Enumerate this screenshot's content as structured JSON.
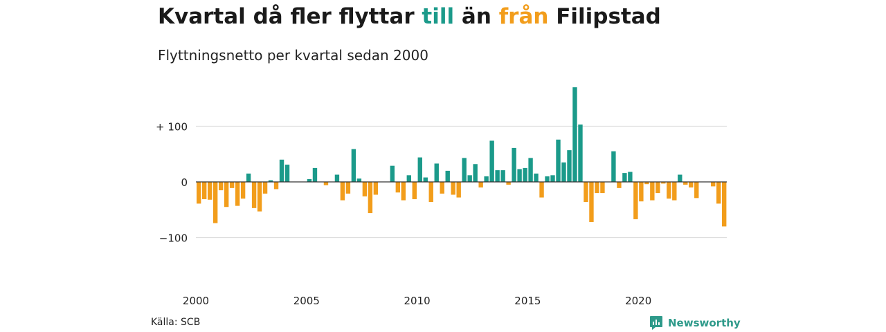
{
  "title": {
    "part1": "Kvartal då fler flyttar ",
    "till": "till",
    "part2": " än ",
    "fran": "från",
    "part3": " Filipstad"
  },
  "subtitle": "Flyttningsnetto per kvartal sedan 2000",
  "source": "Källa: SCB",
  "logo": {
    "text": "Newsworthy",
    "icon": "newsworthy-logo-icon"
  },
  "colors": {
    "positive": "#1b9a8a",
    "negative": "#f29d1b",
    "grid": "#dddddd",
    "zero": "#333333"
  },
  "chart_data": {
    "type": "bar",
    "x_start": "2000 Q1",
    "ylim": [
      -150,
      150
    ],
    "yticks": [
      100,
      0,
      -100
    ],
    "ytick_labels": [
      "+ 100",
      "0",
      "−100"
    ],
    "xticks": [
      2000,
      2005,
      2010,
      2015,
      2020
    ],
    "xtick_labels": [
      "2000",
      "2005",
      "2010",
      "2015",
      "2020"
    ],
    "grid": true,
    "values": [
      -39,
      -31,
      -32,
      -74,
      -15,
      -45,
      -11,
      -43,
      -30,
      15,
      -47,
      -53,
      -21,
      3,
      -13,
      40,
      31,
      0,
      0,
      0,
      5,
      25,
      0,
      -6,
      0,
      13,
      -33,
      -21,
      59,
      6,
      -26,
      -56,
      -23,
      0,
      0,
      29,
      -19,
      -33,
      12,
      -31,
      44,
      8,
      -36,
      33,
      -21,
      20,
      -23,
      -28,
      43,
      12,
      32,
      -10,
      10,
      74,
      21,
      21,
      -5,
      61,
      23,
      25,
      43,
      15,
      -28,
      10,
      12,
      76,
      35,
      57,
      170,
      103,
      -36,
      -72,
      -20,
      -20,
      0,
      55,
      -11,
      16,
      18,
      -67,
      -35,
      -4,
      -33,
      -20,
      -3,
      -30,
      -33,
      13,
      -5,
      -10,
      -29,
      0,
      0,
      -8,
      -39,
      -80
    ]
  }
}
